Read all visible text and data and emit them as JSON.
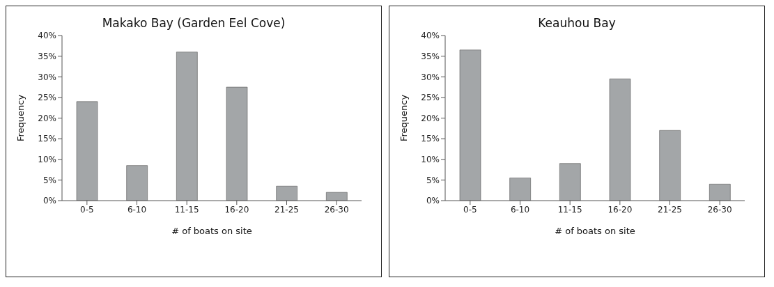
{
  "chart_data": [
    {
      "type": "bar",
      "title": "Makako Bay (Garden Eel Cove)",
      "xlabel": "# of boats on site",
      "ylabel": "Frequency",
      "categories": [
        "0-5",
        "6-10",
        "11-15",
        "16-20",
        "21-25",
        "26-30"
      ],
      "values": [
        24,
        8.5,
        36,
        27.5,
        3.5,
        2
      ],
      "color": "#a3a6a8",
      "ylim": [
        0,
        40
      ],
      "yticks": [
        {
          "value": 0,
          "label": "0%"
        },
        {
          "value": 5,
          "label": "5%"
        },
        {
          "value": 10,
          "label": "10%"
        },
        {
          "value": 15,
          "label": "15%"
        },
        {
          "value": 20,
          "label": "20%"
        },
        {
          "value": 25,
          "label": "25%"
        },
        {
          "value": 30,
          "label": "30%"
        },
        {
          "value": 35,
          "label": "35%"
        },
        {
          "value": 40,
          "label": "40%"
        }
      ],
      "grid": false
    },
    {
      "type": "bar",
      "title": "Keauhou Bay",
      "xlabel": "# of boats on site",
      "ylabel": "Frequency",
      "categories": [
        "0-5",
        "6-10",
        "11-15",
        "16-20",
        "21-25",
        "26-30"
      ],
      "values": [
        36.5,
        5.5,
        9,
        29.5,
        17,
        4
      ],
      "color": "#a3a6a8",
      "ylim": [
        0,
        40
      ],
      "yticks": [
        {
          "value": 0,
          "label": "0%"
        },
        {
          "value": 5,
          "label": "5%"
        },
        {
          "value": 10,
          "label": "10%"
        },
        {
          "value": 15,
          "label": "15%"
        },
        {
          "value": 20,
          "label": "20%"
        },
        {
          "value": 25,
          "label": "25%"
        },
        {
          "value": 30,
          "label": "30%"
        },
        {
          "value": 35,
          "label": "35%"
        },
        {
          "value": 40,
          "label": "40%"
        }
      ],
      "grid": false
    }
  ]
}
